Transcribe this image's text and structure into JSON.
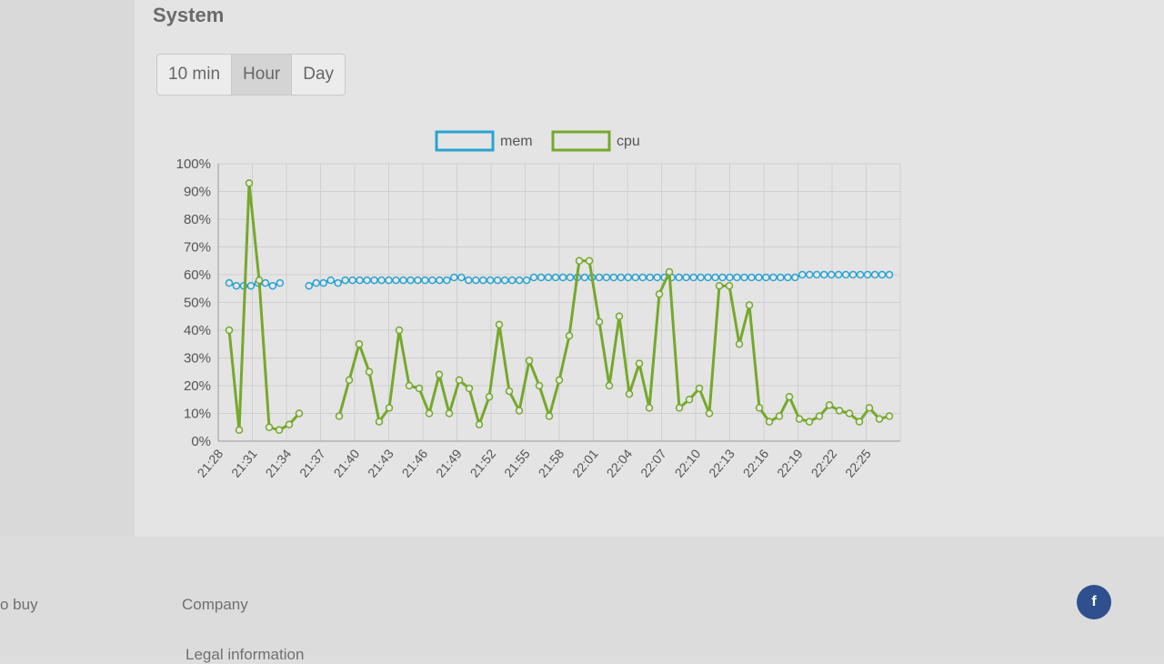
{
  "section": {
    "title": "System"
  },
  "range_buttons": [
    {
      "label": "10 min",
      "active": false
    },
    {
      "label": "Hour",
      "active": true
    },
    {
      "label": "Day",
      "active": false
    }
  ],
  "colors": {
    "mem": "#2aa3cf",
    "cpu": "#76a82c",
    "grid": "#cfcfcf",
    "axis": "#555555"
  },
  "chart_data": {
    "type": "line",
    "legend": [
      "mem",
      "cpu"
    ],
    "legend_position": "top-center",
    "y_ticks": [
      "0%",
      "10%",
      "20%",
      "30%",
      "40%",
      "50%",
      "60%",
      "70%",
      "80%",
      "90%",
      "100%"
    ],
    "ylim": [
      0,
      100
    ],
    "x_ticks": [
      "21:28",
      "21:31",
      "21:34",
      "21:37",
      "21:40",
      "21:43",
      "21:46",
      "21:49",
      "21:52",
      "21:55",
      "21:58",
      "22:01",
      "22:04",
      "22:07",
      "22:10",
      "22:13",
      "22:16",
      "22:19",
      "22:22",
      "22:25"
    ],
    "grid": true,
    "series": [
      {
        "name": "mem",
        "values": [
          57,
          56,
          56,
          56,
          57,
          57,
          56,
          57,
          null,
          null,
          null,
          56,
          57,
          57,
          58,
          57,
          58,
          58,
          58,
          58,
          58,
          58,
          58,
          58,
          58,
          58,
          58,
          58,
          58,
          58,
          58,
          59,
          59,
          58,
          58,
          58,
          58,
          58,
          58,
          58,
          58,
          58,
          59,
          59,
          59,
          59,
          59,
          59,
          59,
          59,
          59,
          59,
          59,
          59,
          59,
          59,
          59,
          59,
          59,
          59,
          59,
          59,
          59,
          59,
          59,
          59,
          59,
          59,
          59,
          59,
          59,
          59,
          59,
          59,
          59,
          59,
          59,
          59,
          59,
          60,
          60,
          60,
          60,
          60,
          60,
          60,
          60,
          60,
          60,
          60,
          60,
          60
        ]
      },
      {
        "name": "cpu",
        "values": [
          40,
          4,
          93,
          58,
          5,
          4,
          6,
          10,
          null,
          null,
          null,
          9,
          22,
          35,
          25,
          7,
          12,
          40,
          20,
          19,
          10,
          24,
          10,
          22,
          19,
          6,
          16,
          42,
          18,
          11,
          29,
          20,
          9,
          22,
          38,
          65,
          65,
          43,
          20,
          45,
          17,
          28,
          12,
          53,
          61,
          12,
          15,
          19,
          10,
          56,
          56,
          35,
          49,
          12,
          7,
          9,
          16,
          8,
          7,
          9,
          13,
          11,
          10,
          7,
          12,
          8,
          9
        ]
      }
    ]
  },
  "footer": {
    "buy_text": "o buy",
    "company": "Company",
    "legal": "Legal information",
    "fb_icon": "f"
  }
}
